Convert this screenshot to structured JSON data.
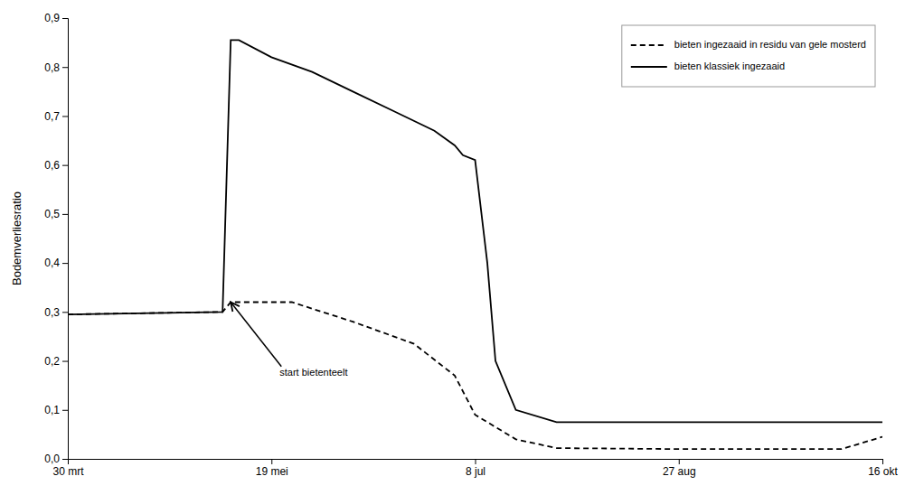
{
  "chart_data": {
    "type": "line",
    "ylabel": "Bodemverliesratio",
    "xlim": [
      0,
      200
    ],
    "xticks": [
      {
        "value": 0,
        "label": "30 mrt"
      },
      {
        "value": 50,
        "label": "19 mei"
      },
      {
        "value": 100,
        "label": "8 jul"
      },
      {
        "value": 150,
        "label": "27 aug"
      },
      {
        "value": 200,
        "label": "16 okt"
      }
    ],
    "ylim": [
      0.0,
      0.9
    ],
    "yticks": [
      {
        "value": 0.0,
        "label": "0,0"
      },
      {
        "value": 0.1,
        "label": "0,1"
      },
      {
        "value": 0.2,
        "label": "0,2"
      },
      {
        "value": 0.3,
        "label": "0,3"
      },
      {
        "value": 0.4,
        "label": "0,4"
      },
      {
        "value": 0.5,
        "label": "0,5"
      },
      {
        "value": 0.6,
        "label": "0,6"
      },
      {
        "value": 0.7,
        "label": "0,7"
      },
      {
        "value": 0.8,
        "label": "0,8"
      },
      {
        "value": 0.9,
        "label": "0,9"
      }
    ],
    "grid": false,
    "legend": "upper right",
    "series": [
      {
        "name": "bieten klassiek ingezaaid",
        "color": "#000000",
        "line_style": "solid",
        "x": [
          0,
          38,
          40,
          42,
          50,
          60,
          70,
          80,
          90,
          95,
          97,
          100,
          103,
          105,
          110,
          120,
          150,
          200
        ],
        "values": [
          0.295,
          0.3,
          0.855,
          0.855,
          0.82,
          0.79,
          0.75,
          0.71,
          0.67,
          0.64,
          0.62,
          0.61,
          0.4,
          0.2,
          0.1,
          0.075,
          0.075,
          0.075
        ]
      },
      {
        "name": "bieten ingezaaid in residu van gele mosterd",
        "color": "#000000",
        "line_style": "dashed",
        "x": [
          0,
          38,
          40,
          55,
          70,
          85,
          95,
          100,
          110,
          120,
          150,
          190,
          200
        ],
        "values": [
          0.295,
          0.3,
          0.32,
          0.32,
          0.28,
          0.235,
          0.17,
          0.09,
          0.04,
          0.022,
          0.02,
          0.02,
          0.045
        ]
      }
    ],
    "annotations": [
      {
        "text": "start bietenteelt",
        "x": 40,
        "y": 0.32,
        "text_x": 52,
        "text_y": 0.185
      }
    ]
  }
}
